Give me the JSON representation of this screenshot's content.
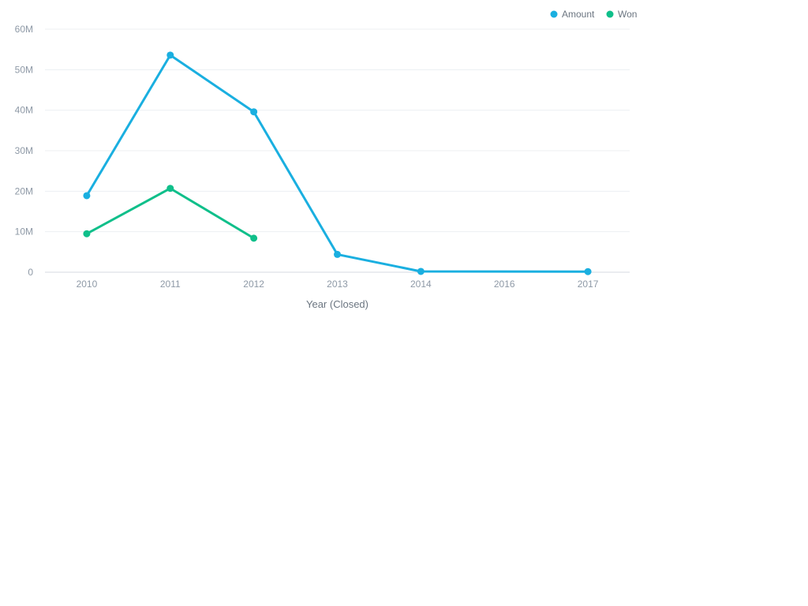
{
  "chart_data": {
    "type": "line",
    "categories": [
      "2010",
      "2011",
      "2012",
      "2013",
      "2014",
      "2016",
      "2017"
    ],
    "series": [
      {
        "name": "Amount",
        "color": "#1aafe0",
        "values": [
          18900000,
          53600000,
          39600000,
          4400000,
          200000,
          null,
          150000
        ]
      },
      {
        "name": "Won",
        "color": "#0fbf8a",
        "values": [
          9500000,
          20700000,
          8400000,
          null,
          null,
          null,
          null
        ]
      }
    ],
    "yticks": [
      "0",
      "10M",
      "20M",
      "30M",
      "40M",
      "50M",
      "60M"
    ],
    "ylim": [
      0,
      60000000
    ],
    "xlabel": "Year (Closed)",
    "ylabel": "",
    "grid": true,
    "legend": "top-right"
  }
}
